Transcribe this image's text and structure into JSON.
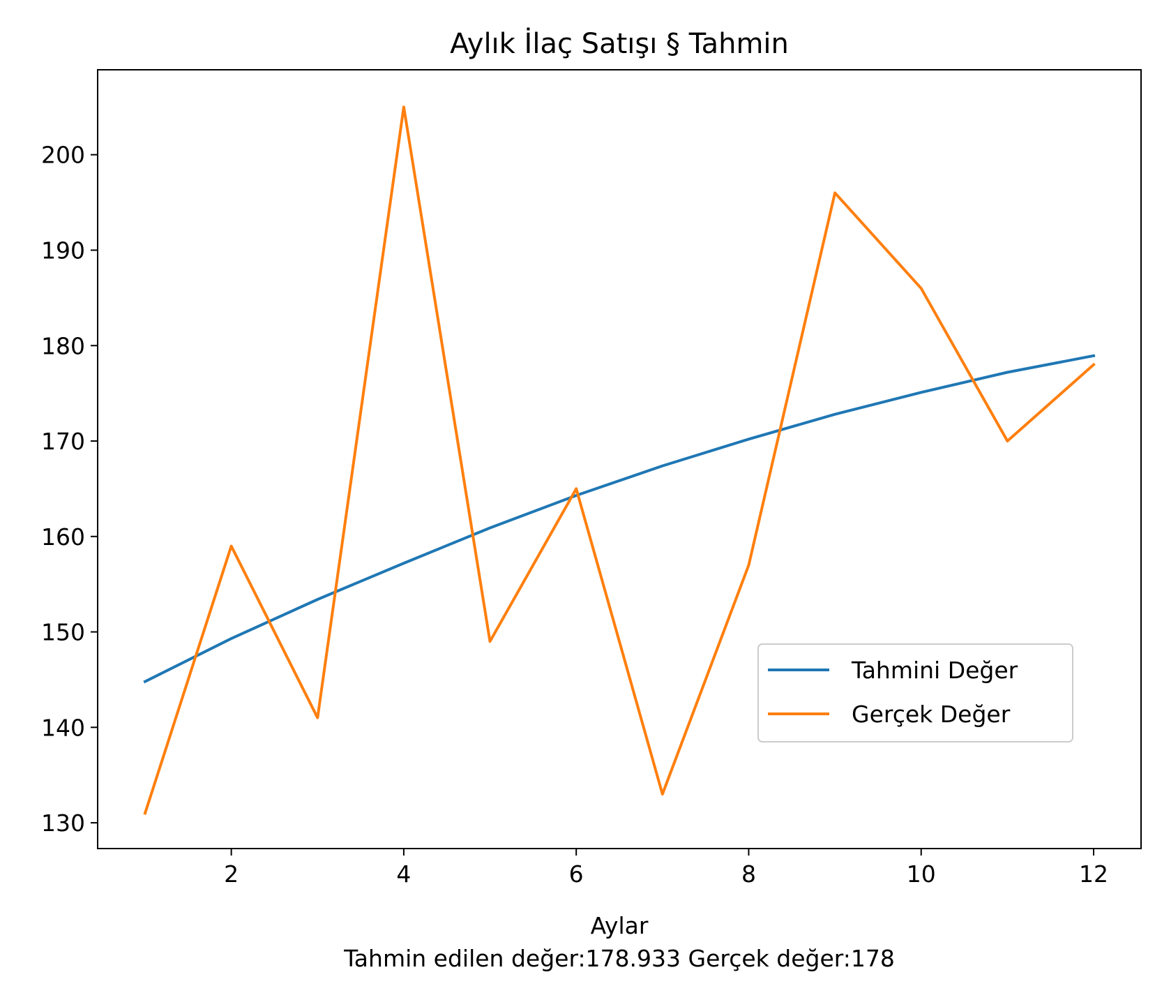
{
  "chart_data": {
    "type": "line",
    "title": "Aylık İlaç Satışı § Tahmin",
    "xlabel": "Aylar",
    "xlabel_note": "Tahmin edilen değer:178.933 Gerçek değer:178",
    "ylabel": "",
    "x": [
      1,
      2,
      3,
      4,
      5,
      6,
      7,
      8,
      9,
      10,
      11,
      12
    ],
    "xlim": [
      0.45,
      12.55
    ],
    "ylim": [
      127.3,
      208.9
    ],
    "xticks": [
      2,
      4,
      6,
      8,
      10,
      12
    ],
    "yticks": [
      130,
      140,
      150,
      160,
      170,
      180,
      190,
      200
    ],
    "grid": false,
    "legend_position": "lower-right",
    "series": [
      {
        "name": "Tahmini Değer",
        "color": "#1f77b4",
        "values": [
          144.8,
          149.3,
          153.4,
          157.2,
          160.9,
          164.3,
          167.4,
          170.2,
          172.8,
          175.1,
          177.2,
          178.933
        ]
      },
      {
        "name": "Gerçek Değer",
        "color": "#ff7f0e",
        "values": [
          131,
          159,
          141,
          205,
          149,
          165,
          133,
          157,
          196,
          186,
          170,
          178
        ]
      }
    ]
  }
}
